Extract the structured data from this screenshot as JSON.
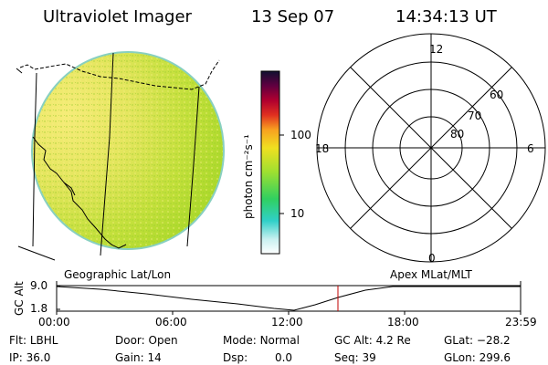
{
  "header": {
    "title": "Ultraviolet Imager",
    "date": "13 Sep 07",
    "time": "14:34:13 UT"
  },
  "colorbar": {
    "unit_label": "photon cm⁻²s⁻¹",
    "ticks": [
      "100",
      "10"
    ]
  },
  "polar": {
    "mlt_labels": [
      "12",
      "18",
      "6",
      "0"
    ],
    "lat_labels": [
      "60",
      "70",
      "80"
    ]
  },
  "timeline": {
    "ylabel": "GC Alt",
    "y_ticks": [
      "9.0",
      "1.8"
    ],
    "left_title": "Geographic Lat/Lon",
    "right_title": "Apex MLat/MLT",
    "x_ticks": [
      "00:00",
      "06:00",
      "12:00",
      "18:00",
      "23:59"
    ],
    "y_range": [
      1.8,
      9.0
    ],
    "marker_time_hours": 14.57
  },
  "info": {
    "row1": [
      {
        "key": "Flt:",
        "value": "LBHL"
      },
      {
        "key": "Door:",
        "value": "Open"
      },
      {
        "key": "Mode:",
        "value": "Normal"
      },
      {
        "key": "GC Alt:",
        "value": "4.2 Re"
      },
      {
        "key": "GLat:",
        "value": "−28.2"
      }
    ],
    "row2": [
      {
        "key": "IP:",
        "value": "36.0"
      },
      {
        "key": "Gain:",
        "value": "14"
      },
      {
        "key": "Dsp:",
        "value": "0.0"
      },
      {
        "key": "Seq:",
        "value": "39"
      },
      {
        "key": "GLon:",
        "value": "299.6"
      }
    ]
  },
  "colors": {
    "marker": "#c00000",
    "image_base": "#c8e040",
    "image_bright": "#f2e860"
  }
}
